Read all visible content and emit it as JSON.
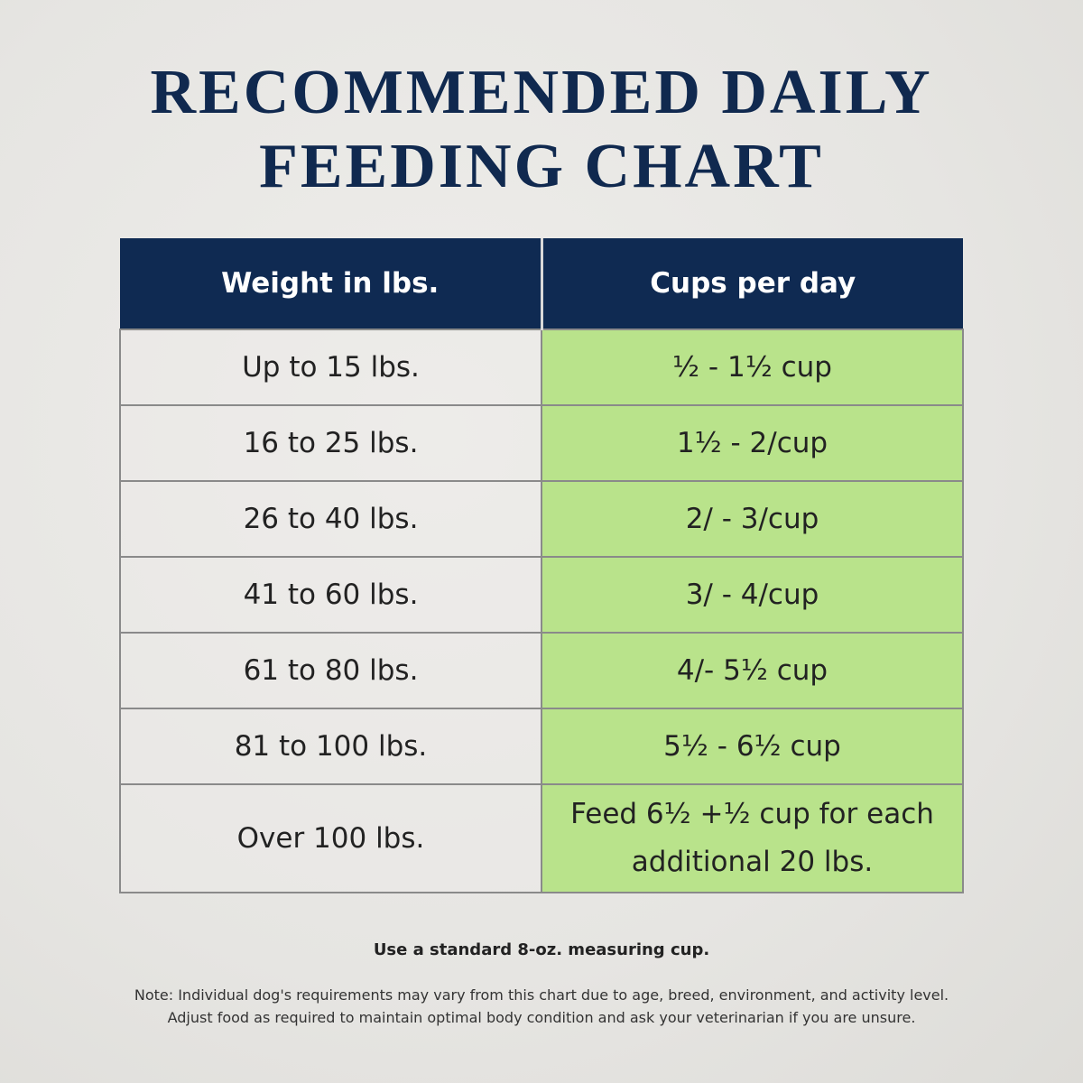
{
  "header": {
    "title": [
      "RECOMMENDED DAILY",
      "FEEDING CHART"
    ]
  },
  "table": {
    "columns": [
      "Weight in lbs.",
      "Cups per day"
    ],
    "rows": [
      [
        "Up to 15 lbs.",
        "½ - 1½ cup"
      ],
      [
        "16 to 25 lbs.",
        "1½  - 2/cup"
      ],
      [
        "26 to 40 lbs.",
        "2/ - 3/cup"
      ],
      [
        "41 to 60 lbs.",
        "3/ - 4/cup"
      ],
      [
        "61 to 80 lbs.",
        "4/- 5½ cup"
      ],
      [
        "81 to 100 lbs.",
        "5½ - 6½ cup"
      ],
      [
        "Over 100 lbs.",
        "Feed 6½ +½ cup for each additional 20 lbs."
      ]
    ]
  },
  "notes": {
    "measure": "Use a standard 8-oz. measuring cup.",
    "lines": [
      "Note: Individual dog's requirements may vary from this chart due to age, breed, environment, and activity level.",
      "Adjust food as required to maintain optimal body condition and ask your veterinarian if you are unsure."
    ]
  }
}
